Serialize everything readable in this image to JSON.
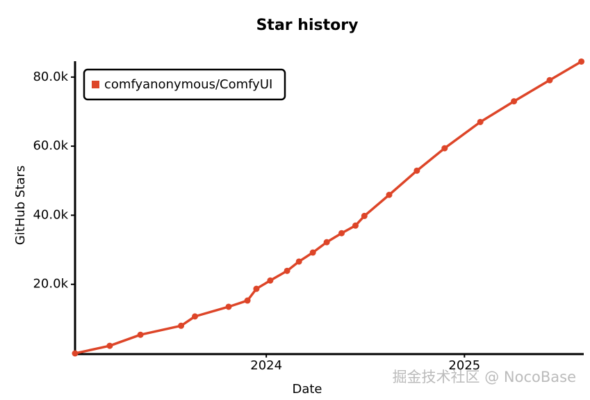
{
  "chart_data": {
    "type": "line",
    "title": "Star history",
    "xlabel": "Date",
    "ylabel": "GitHub Stars",
    "x": [
      2023.035,
      2023.21,
      2023.365,
      2023.57,
      2023.64,
      2023.81,
      2023.905,
      2023.95,
      2024.02,
      2024.105,
      2024.165,
      2024.235,
      2024.305,
      2024.38,
      2024.45,
      2024.495,
      2024.62,
      2024.76,
      2024.9,
      2025.08,
      2025.25,
      2025.43,
      2025.59
    ],
    "series": [
      {
        "name": "comfyanonymous/ComfyUI",
        "color": "#dd4528",
        "values": [
          0,
          2200,
          5400,
          8000,
          10700,
          13500,
          15300,
          18700,
          21100,
          23900,
          26600,
          29200,
          32200,
          34800,
          37000,
          39800,
          45900,
          52900,
          59400,
          67000,
          73000,
          79100,
          84500
        ]
      }
    ],
    "xlim": [
      2023.035,
      2025.595
    ],
    "xticks": [
      2024,
      2025
    ],
    "ylim": [
      0,
      85000
    ],
    "yticks": [
      {
        "value": 20000,
        "label": "20.0k"
      },
      {
        "value": 40000,
        "label": "40.0k"
      },
      {
        "value": 60000,
        "label": "60.0k"
      },
      {
        "value": 80000,
        "label": "80.0k"
      }
    ],
    "legend": "upper left",
    "grid": false
  },
  "watermark": "掘金技术社区 @ NocoBase"
}
